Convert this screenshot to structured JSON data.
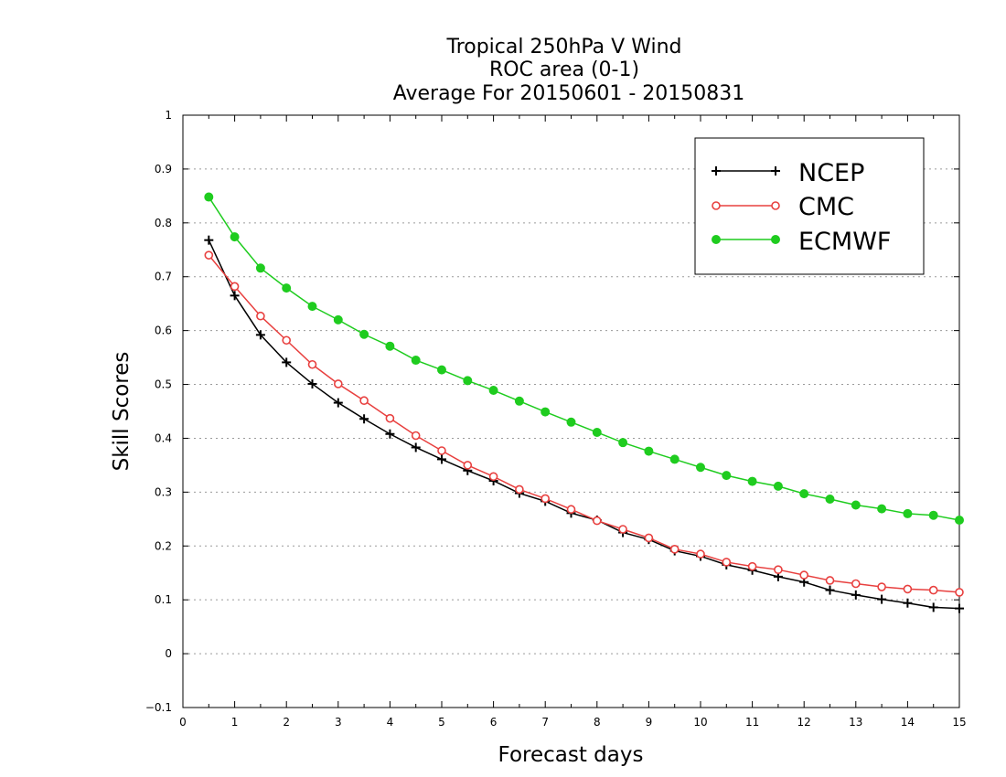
{
  "chart_data": {
    "type": "line",
    "title_lines": [
      "Tropical 250hPa V Wind",
      "ROC area (0-1)",
      "Average For 20150601 - 20150831"
    ],
    "xlabel": "Forecast days",
    "ylabel": "Skill Scores",
    "xlim": [
      0,
      15
    ],
    "ylim": [
      -0.1,
      1
    ],
    "xticks": [
      "0",
      "1",
      "2",
      "3",
      "4",
      "5",
      "6",
      "7",
      "8",
      "9",
      "10",
      "11",
      "12",
      "13",
      "14",
      "15"
    ],
    "yticks": [
      "−0.1",
      "0",
      "0.1",
      "0.2",
      "0.3",
      "0.4",
      "0.5",
      "0.6",
      "0.7",
      "0.8",
      "0.9",
      "1"
    ],
    "grid": "horizontal-dotted",
    "legend_position": "top-right",
    "x": [
      0.5,
      1,
      1.5,
      2,
      2.5,
      3,
      3.5,
      4,
      4.5,
      5,
      5.5,
      6,
      6.5,
      7,
      7.5,
      8,
      8.5,
      9,
      9.5,
      10,
      10.5,
      11,
      11.5,
      12,
      12.5,
      13,
      13.5,
      14,
      14.5,
      15
    ],
    "series": [
      {
        "name": "NCEP",
        "color": "#000000",
        "marker": "plus",
        "values": [
          0.768,
          0.665,
          0.592,
          0.541,
          0.501,
          0.466,
          0.436,
          0.408,
          0.383,
          0.361,
          0.34,
          0.321,
          0.298,
          0.283,
          0.261,
          0.248,
          0.225,
          0.212,
          0.191,
          0.181,
          0.165,
          0.155,
          0.143,
          0.133,
          0.118,
          0.109,
          0.101,
          0.094,
          0.086,
          0.084
        ]
      },
      {
        "name": "CMC",
        "color": "#e8403f",
        "marker": "open-circle",
        "values": [
          0.74,
          0.682,
          0.627,
          0.582,
          0.537,
          0.501,
          0.47,
          0.437,
          0.405,
          0.377,
          0.35,
          0.329,
          0.305,
          0.288,
          0.268,
          0.247,
          0.231,
          0.215,
          0.194,
          0.185,
          0.17,
          0.162,
          0.156,
          0.146,
          0.136,
          0.13,
          0.124,
          0.12,
          0.118,
          0.114
        ]
      },
      {
        "name": "ECMWF",
        "color": "#1fcc1f",
        "marker": "filled-circle",
        "values": [
          0.848,
          0.774,
          0.716,
          0.679,
          0.645,
          0.62,
          0.593,
          0.571,
          0.545,
          0.527,
          0.507,
          0.489,
          0.469,
          0.449,
          0.43,
          0.411,
          0.392,
          0.376,
          0.361,
          0.346,
          0.331,
          0.32,
          0.311,
          0.297,
          0.287,
          0.276,
          0.269,
          0.26,
          0.257,
          0.248
        ]
      }
    ]
  }
}
